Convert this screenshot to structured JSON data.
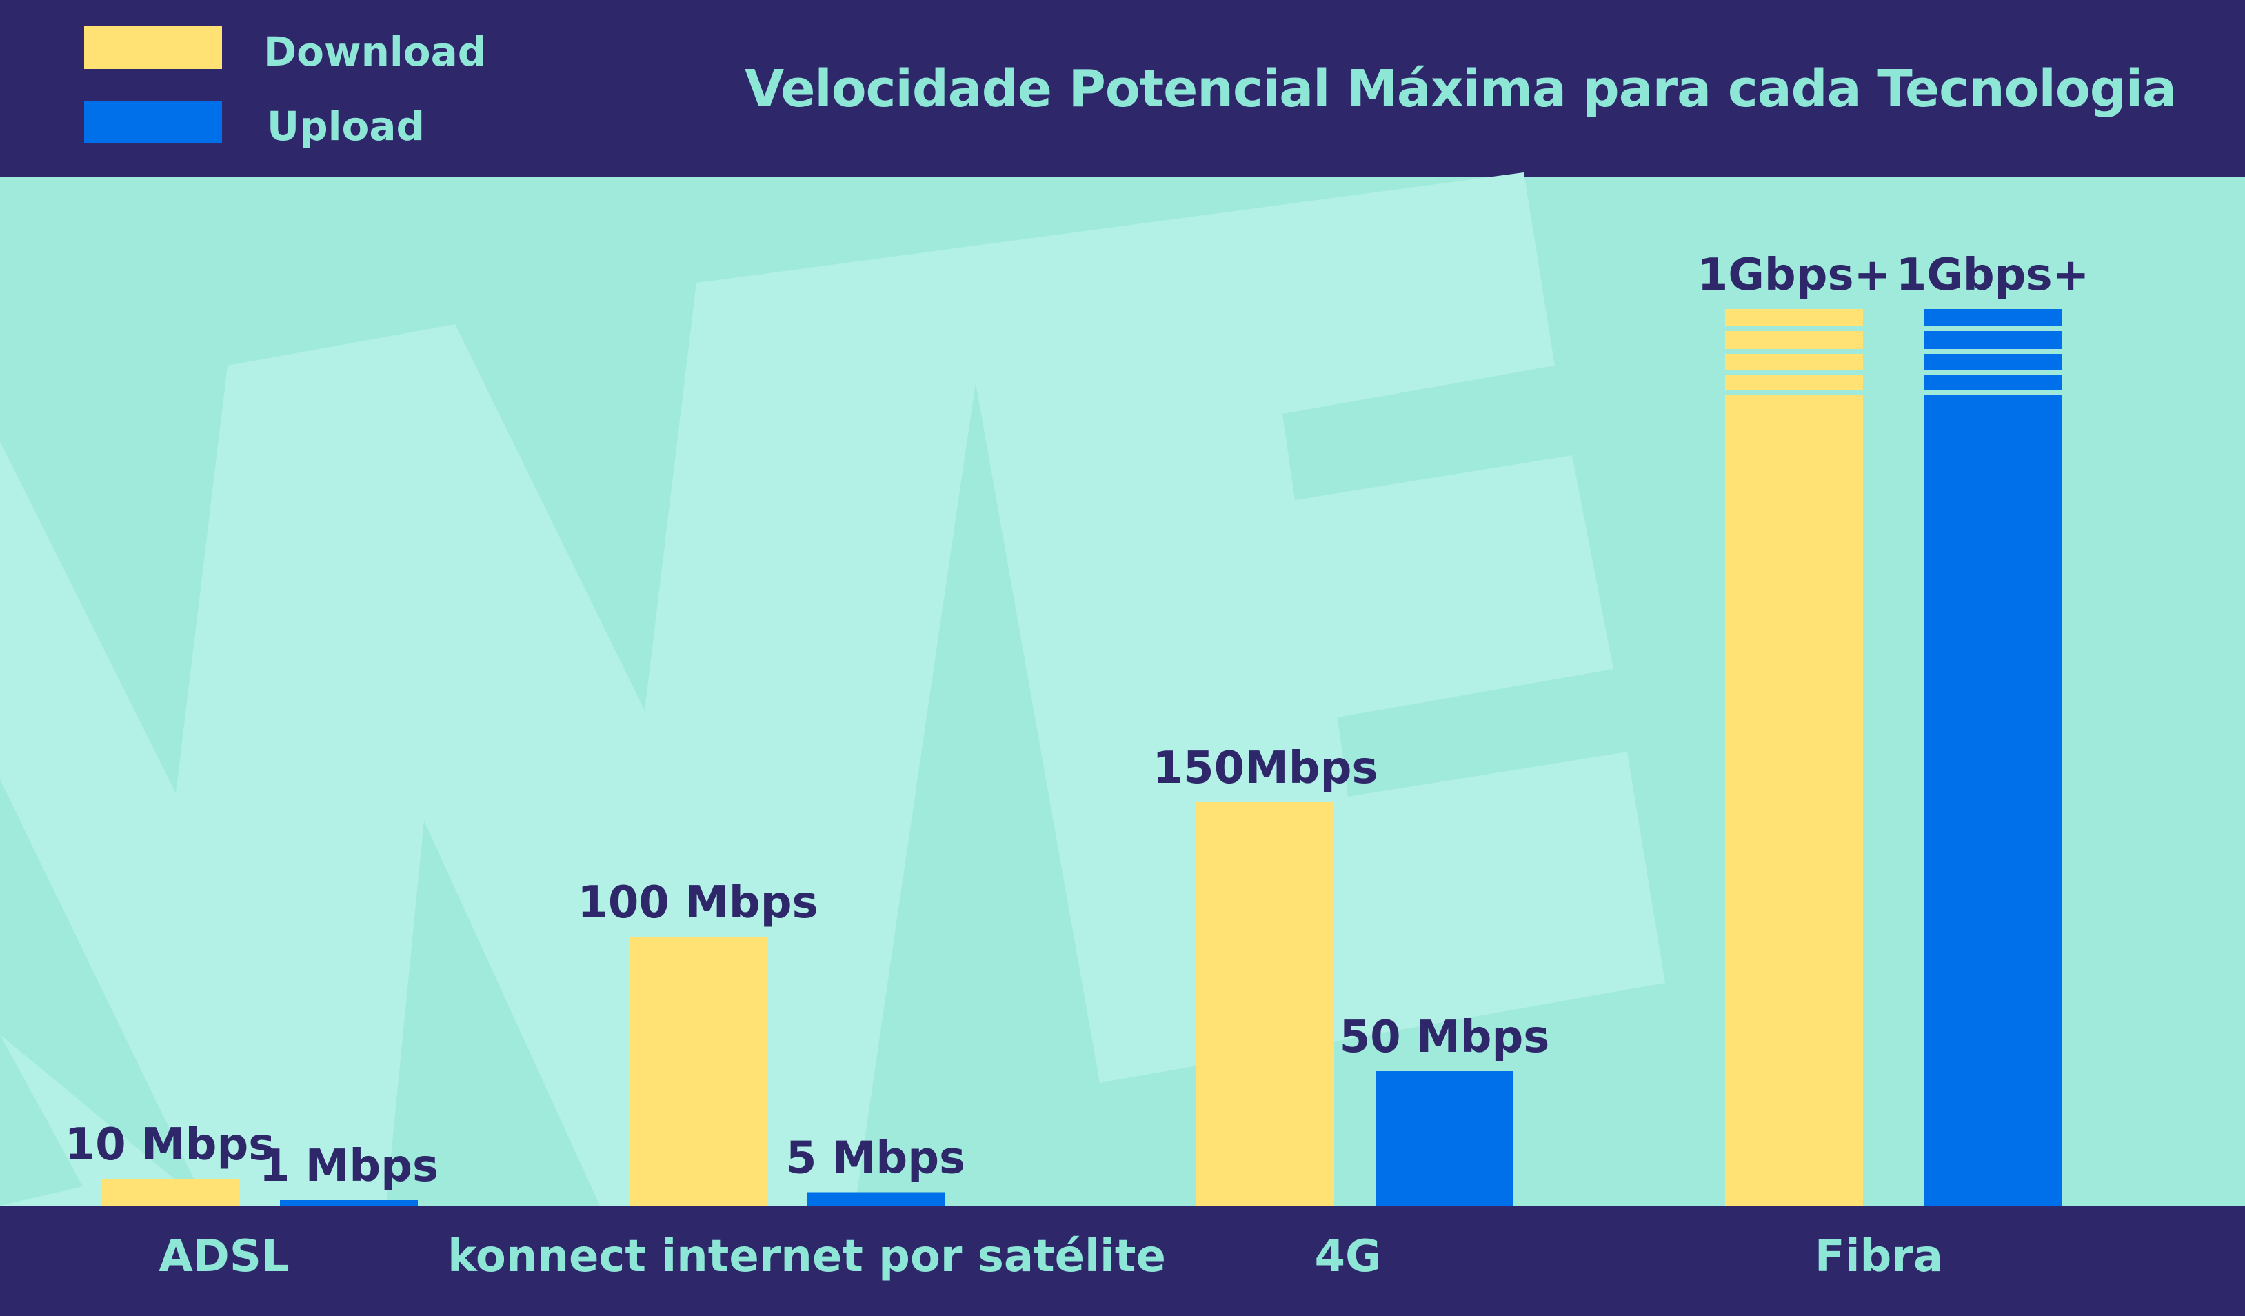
{
  "chart_data": {
    "type": "bar",
    "title": "Velocidade Potencial Máxima para cada Tecnologia",
    "categories": [
      "ADSL",
      "konnect internet por satélite",
      "4G",
      "Fibra"
    ],
    "series": [
      {
        "name": "Download",
        "color": "#FFE174",
        "values": [
          10,
          100,
          150,
          1000
        ],
        "labels": [
          "10 Mbps",
          "100 Mbps",
          "150Mbps",
          "1Gbps+"
        ]
      },
      {
        "name": "Upload",
        "color": "#0070EA",
        "values": [
          1,
          5,
          50,
          1000
        ],
        "labels": [
          "1 Mbps",
          "5 Mbps",
          "50 Mbps",
          "1Gbps+"
        ]
      }
    ],
    "axis_break_category": "Fibra",
    "xlabel": "",
    "ylabel": "",
    "grid": false,
    "legend": "top-left"
  },
  "colors": {
    "header": "#2E2769",
    "background": "#9FEADB",
    "text_accent": "#8EE6D6"
  }
}
